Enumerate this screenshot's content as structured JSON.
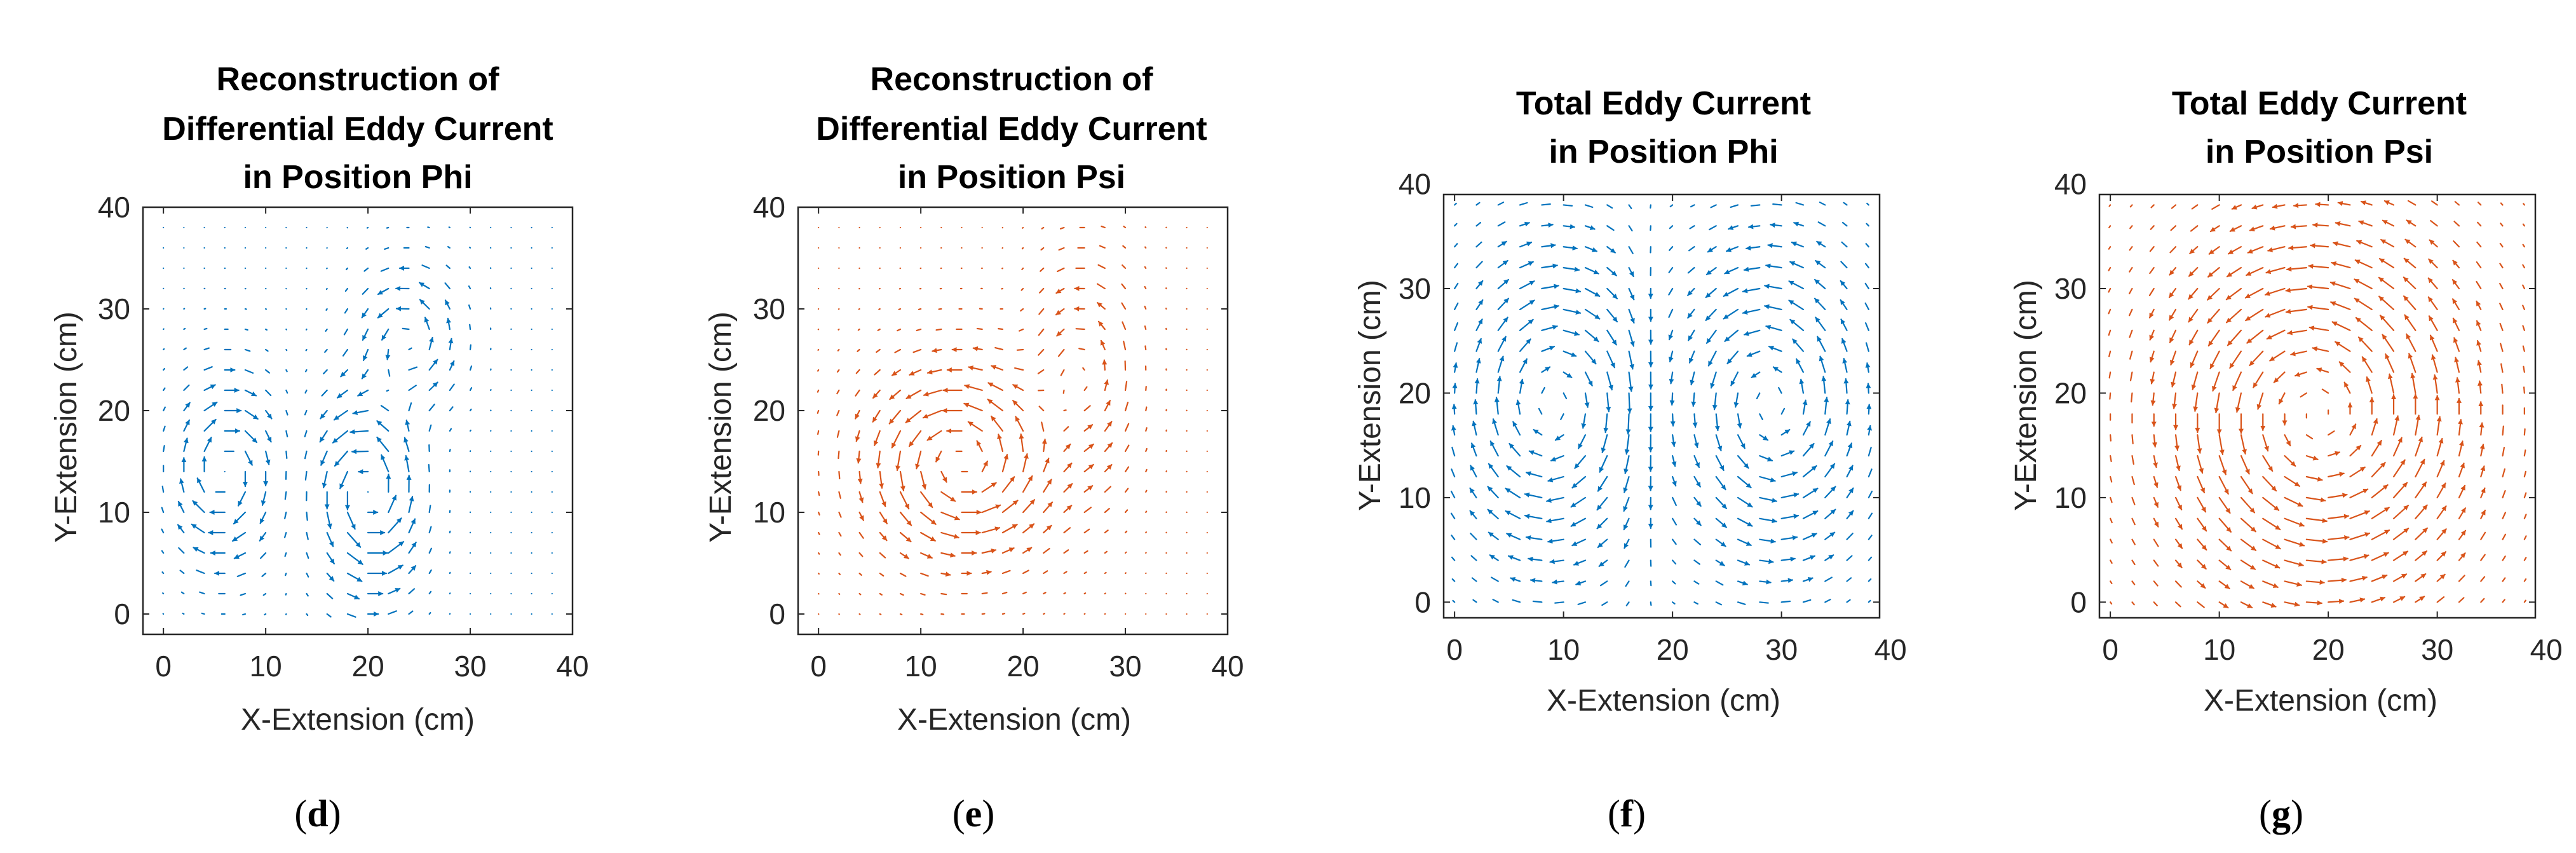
{
  "colors": {
    "blue": "#0072BD",
    "orange": "#D95319",
    "axis": "#262626"
  },
  "chart_data": [
    {
      "type": "quiver",
      "panel": "d",
      "title": [
        "Reconstruction of",
        "Differential Eddy Current",
        "in Position Phi"
      ],
      "xlabel": "X-Extension (cm)",
      "ylabel": "Y-Extension (cm)",
      "xlim": [
        -2,
        40
      ],
      "ylim": [
        -2,
        40
      ],
      "xticks": [
        0,
        10,
        20,
        30,
        40
      ],
      "yticks": [
        0,
        10,
        20,
        30,
        40
      ],
      "color": "#0072BD",
      "field": "diff_phi",
      "grid_step": 2,
      "grid_range": [
        0,
        38
      ]
    },
    {
      "type": "quiver",
      "panel": "e",
      "title": [
        "Reconstruction of",
        "Differential Eddy Current",
        "in Position Psi"
      ],
      "xlabel": "X-Extension (cm)",
      "ylabel": "Y-Extension (cm)",
      "xlim": [
        -2,
        40
      ],
      "ylim": [
        -2,
        40
      ],
      "xticks": [
        0,
        10,
        20,
        30,
        40
      ],
      "yticks": [
        0,
        10,
        20,
        30,
        40
      ],
      "color": "#D95319",
      "field": "diff_psi",
      "grid_step": 2,
      "grid_range": [
        0,
        38
      ]
    },
    {
      "type": "quiver",
      "panel": "f",
      "title": [
        "Total Eddy Current",
        "in Position Phi"
      ],
      "xlabel": "X-Extension  (cm)",
      "ylabel": "Y-Extension  (cm)",
      "xlim": [
        -1,
        39
      ],
      "ylim": [
        -1.5,
        39
      ],
      "xticks": [
        0,
        10,
        20,
        30,
        40
      ],
      "yticks": [
        0,
        10,
        20,
        30,
        40
      ],
      "color": "#0072BD",
      "field": "total_phi",
      "grid_step": 2,
      "grid_range": [
        0,
        38
      ]
    },
    {
      "type": "quiver",
      "panel": "g",
      "title": [
        "Total Eddy Current",
        "in Position Psi"
      ],
      "xlabel": "X-Extension  (cm)",
      "ylabel": "Y-Extension  (cm)",
      "xlim": [
        -1,
        39
      ],
      "ylim": [
        -1.5,
        39
      ],
      "xticks": [
        0,
        10,
        20,
        30,
        40
      ],
      "yticks": [
        0,
        10,
        20,
        30,
        40
      ],
      "color": "#D95319",
      "field": "total_psi",
      "grid_step": 2,
      "grid_range": [
        0,
        38
      ]
    }
  ],
  "labels": {
    "d": "d",
    "e": "e",
    "f": "f",
    "g": "g"
  }
}
